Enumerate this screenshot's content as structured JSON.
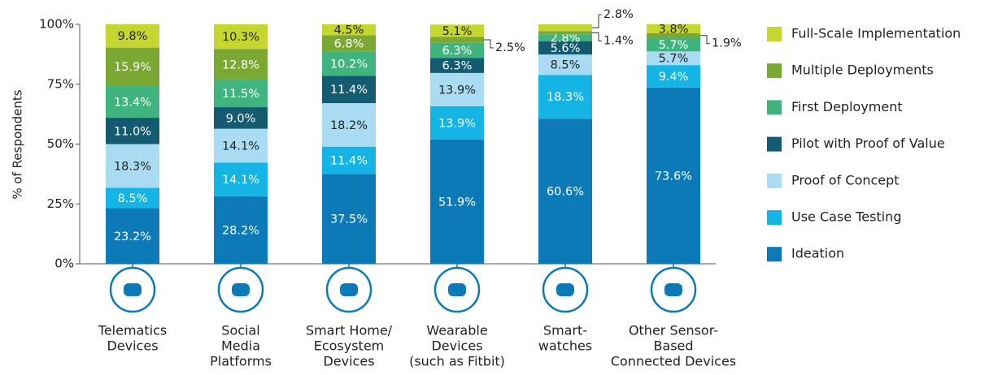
{
  "chart_data": {
    "type": "stacked_bar",
    "y_axis_label": "% of Respondents",
    "categories": [
      [
        "Telematics",
        "Devices"
      ],
      [
        "Social",
        "Media",
        "Platforms"
      ],
      [
        "Smart Home/",
        "Ecosystem",
        "Devices"
      ],
      [
        "Wearable",
        "Devices",
        "(such as Fitbit)"
      ],
      [
        "Smart-",
        "watches"
      ],
      [
        "Other Sensor-",
        "Based",
        "Connected Devices"
      ]
    ],
    "ylim": [
      0,
      100
    ],
    "yticks": [
      {
        "value": 0,
        "label": "0%"
      },
      {
        "value": 25,
        "label": "25%"
      },
      {
        "value": 50,
        "label": "50%"
      },
      {
        "value": 75,
        "label": "75%"
      },
      {
        "value": 100,
        "label": "100%"
      }
    ],
    "series": [
      {
        "name": "Ideation",
        "color": "#0b7ab6",
        "label_color": "#ffffff",
        "values": [
          23.2,
          28.2,
          37.5,
          51.9,
          60.6,
          73.6
        ],
        "value_labels": [
          "23.2%",
          "28.2%",
          "37.5%",
          "51.9%",
          "60.6%",
          "73.6%"
        ]
      },
      {
        "name": "Use Case Testing",
        "color": "#14b4e4",
        "label_color": "#ffffff",
        "values": [
          8.5,
          14.1,
          11.4,
          13.9,
          18.3,
          9.4
        ],
        "value_labels": [
          "8.5%",
          "14.1%",
          "11.4%",
          "13.9%",
          "18.3%",
          "9.4%"
        ]
      },
      {
        "name": "Proof of Concept",
        "color": "#a9dcf2",
        "label_color": "#222222",
        "values": [
          18.3,
          14.1,
          18.2,
          13.9,
          8.5,
          5.7
        ],
        "value_labels": [
          "18.3%",
          "14.1%",
          "18.2%",
          "13.9%",
          "8.5%",
          "5.7%"
        ]
      },
      {
        "name": "Pilot with Proof of Value",
        "color": "#145a70",
        "label_color": "#ffffff",
        "values": [
          11.0,
          9.0,
          11.4,
          6.3,
          5.6,
          null
        ],
        "value_labels": [
          "11.0%",
          "9.0%",
          "11.4%",
          "6.3%",
          "5.6%",
          null
        ]
      },
      {
        "name": "First Deployment",
        "color": "#3fb47f",
        "label_color": "#ffffff",
        "values": [
          13.4,
          11.5,
          10.2,
          6.3,
          2.8,
          5.7
        ],
        "value_labels": [
          "13.4%",
          "11.5%",
          "10.2%",
          "6.3%",
          "2.8%",
          "5.7%"
        ]
      },
      {
        "name": "Multiple Deployments",
        "color": "#7ba733",
        "label_color": "#ffffff",
        "values": [
          15.9,
          12.8,
          6.8,
          2.5,
          1.4,
          1.9
        ],
        "value_labels": [
          "15.9%",
          "12.8%",
          "6.8%",
          "2.5%",
          "1.4%",
          "1.9%"
        ]
      },
      {
        "name": "Full-Scale Implementation",
        "color": "#c4d62f",
        "label_color": "#222222",
        "values": [
          9.8,
          10.3,
          4.5,
          5.1,
          2.8,
          3.8
        ],
        "value_labels": [
          "9.8%",
          "10.3%",
          "4.5%",
          "5.1%",
          "2.8%",
          "3.8%"
        ]
      }
    ]
  }
}
